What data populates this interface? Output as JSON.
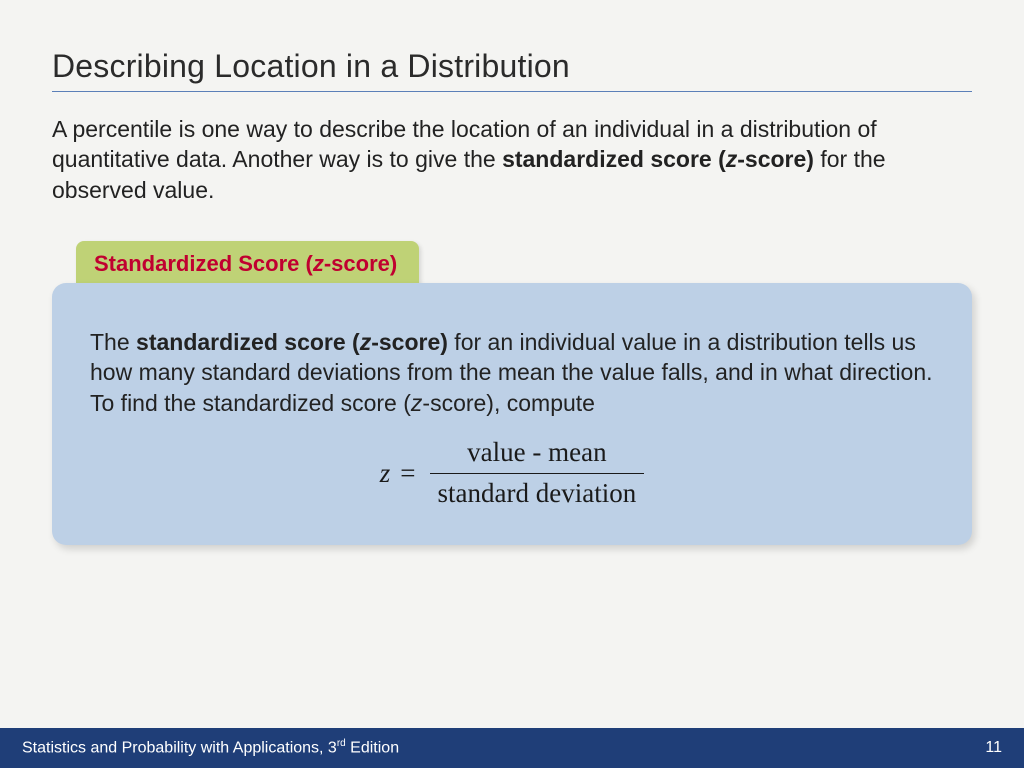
{
  "colors": {
    "page_bg": "#f4f4f2",
    "title_rule": "#5b7fb8",
    "tab_bg": "#bfd276",
    "tab_text": "#c00030",
    "panel_bg": "#bdd0e6",
    "footer_bg": "#1f3e78",
    "footer_text": "#ffffff",
    "body_text": "#222222"
  },
  "typography": {
    "title_fontsize": 32,
    "body_fontsize": 23,
    "tab_fontsize": 22,
    "formula_fontsize": 27,
    "footer_fontsize": 16,
    "body_font": "Arial",
    "formula_font": "Times New Roman"
  },
  "title": "Describing Location in a Distribution",
  "intro": {
    "pre": "A percentile is one way to describe the location of an individual in a distribution of quantitative data. Another way is to give the ",
    "bold_a": "standardized score (",
    "bold_italic": "z",
    "bold_b": "-score)",
    "post": " for the observed value."
  },
  "tab": {
    "pre": "Standardized Score (",
    "ital": "z",
    "post": "-score)"
  },
  "panel": {
    "t1": "The ",
    "b1": "standardized score (",
    "bi": "z",
    "b2": "-score)",
    "t2": " for an individual value in a distribution tells us how many standard deviations from the mean the value falls, and in what direction. To find the standardized score (",
    "i2": "z",
    "t3": "-score), compute"
  },
  "formula": {
    "lhs": "z",
    "eq": "=",
    "numerator": "value - mean",
    "denominator": "standard deviation"
  },
  "footer": {
    "book_a": "Statistics and Probability with Applications, 3",
    "book_sup": "rd",
    "book_b": " Edition",
    "page": "11"
  }
}
